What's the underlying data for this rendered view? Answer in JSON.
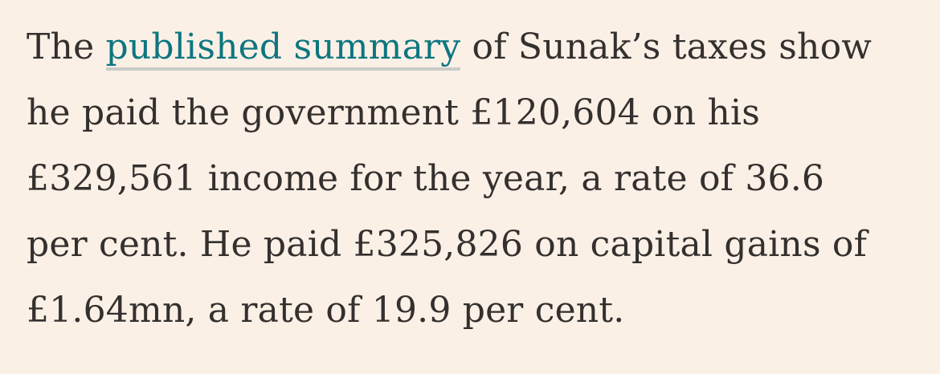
{
  "article": {
    "paragraph": {
      "line1": {
        "before_link": "The ",
        "link_text": "published summary",
        "after_link": " of Sunak’s taxes show"
      },
      "line2": "he paid the government £120,604 on his",
      "line3": "£329,561 income for the year, a rate of 36.6",
      "line4": "per cent. He paid £325,826 on capital gains of",
      "line5": "£1.64mn, a rate of 19.9 per cent."
    }
  },
  "colors": {
    "background": "#fbf0e6",
    "text": "#33302e",
    "link": "#0d7680",
    "link_underline": "#c9ccc7"
  }
}
